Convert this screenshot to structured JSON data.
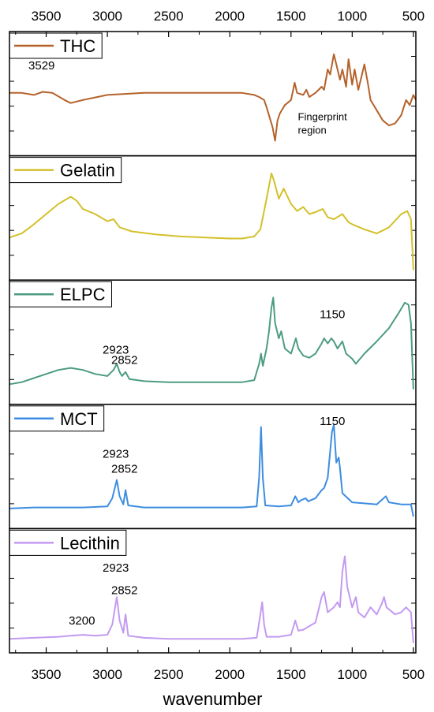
{
  "chart_data": {
    "type": "line",
    "xlabel": "wavenumber",
    "ylabel": "",
    "xlim": [
      3800,
      480
    ],
    "x_ticks": [
      "3500",
      "3000",
      "2500",
      "2000",
      "1500",
      "1000",
      "500"
    ],
    "x_tick_values": [
      3500,
      3000,
      2500,
      2000,
      1500,
      1000,
      500
    ],
    "panels": [
      {
        "name": "THC",
        "color": "#b5622a",
        "annotations": [
          {
            "text": "3529",
            "x": 3529,
            "y": 0.75
          },
          {
            "text": "Fingerprint region",
            "x": 1250,
            "y": 0.25
          }
        ],
        "points": [
          [
            3800,
            0.52
          ],
          [
            3700,
            0.52
          ],
          [
            3600,
            0.5
          ],
          [
            3529,
            0.53
          ],
          [
            3450,
            0.52
          ],
          [
            3350,
            0.45
          ],
          [
            3300,
            0.42
          ],
          [
            3200,
            0.45
          ],
          [
            3000,
            0.5
          ],
          [
            2700,
            0.52
          ],
          [
            2400,
            0.52
          ],
          [
            2000,
            0.52
          ],
          [
            1900,
            0.52
          ],
          [
            1800,
            0.5
          ],
          [
            1760,
            0.48
          ],
          [
            1720,
            0.45
          ],
          [
            1700,
            0.38
          ],
          [
            1680,
            0.3
          ],
          [
            1650,
            0.18
          ],
          [
            1630,
            0.05
          ],
          [
            1610,
            0.25
          ],
          [
            1590,
            0.32
          ],
          [
            1550,
            0.4
          ],
          [
            1500,
            0.45
          ],
          [
            1470,
            0.62
          ],
          [
            1450,
            0.52
          ],
          [
            1400,
            0.5
          ],
          [
            1375,
            0.55
          ],
          [
            1350,
            0.48
          ],
          [
            1300,
            0.52
          ],
          [
            1250,
            0.58
          ],
          [
            1230,
            0.55
          ],
          [
            1200,
            0.75
          ],
          [
            1180,
            0.7
          ],
          [
            1150,
            0.9
          ],
          [
            1130,
            0.8
          ],
          [
            1100,
            0.65
          ],
          [
            1080,
            0.75
          ],
          [
            1050,
            0.58
          ],
          [
            1030,
            0.85
          ],
          [
            1000,
            0.6
          ],
          [
            980,
            0.75
          ],
          [
            950,
            0.55
          ],
          [
            900,
            0.8
          ],
          [
            870,
            0.6
          ],
          [
            850,
            0.45
          ],
          [
            800,
            0.35
          ],
          [
            750,
            0.25
          ],
          [
            700,
            0.2
          ],
          [
            650,
            0.22
          ],
          [
            600,
            0.3
          ],
          [
            560,
            0.45
          ],
          [
            530,
            0.4
          ],
          [
            500,
            0.5
          ],
          [
            480,
            0.45
          ]
        ]
      },
      {
        "name": "Gelatin",
        "color": "#d3c02a",
        "annotations": [],
        "points": [
          [
            3800,
            0.32
          ],
          [
            3700,
            0.36
          ],
          [
            3600,
            0.45
          ],
          [
            3500,
            0.55
          ],
          [
            3400,
            0.65
          ],
          [
            3300,
            0.72
          ],
          [
            3250,
            0.68
          ],
          [
            3200,
            0.6
          ],
          [
            3100,
            0.55
          ],
          [
            3000,
            0.48
          ],
          [
            2950,
            0.5
          ],
          [
            2900,
            0.42
          ],
          [
            2800,
            0.38
          ],
          [
            2600,
            0.35
          ],
          [
            2400,
            0.33
          ],
          [
            2200,
            0.32
          ],
          [
            2000,
            0.31
          ],
          [
            1900,
            0.31
          ],
          [
            1800,
            0.33
          ],
          [
            1750,
            0.4
          ],
          [
            1700,
            0.7
          ],
          [
            1660,
            0.95
          ],
          [
            1640,
            0.88
          ],
          [
            1600,
            0.7
          ],
          [
            1560,
            0.8
          ],
          [
            1540,
            0.75
          ],
          [
            1500,
            0.65
          ],
          [
            1450,
            0.58
          ],
          [
            1400,
            0.62
          ],
          [
            1350,
            0.55
          ],
          [
            1300,
            0.57
          ],
          [
            1240,
            0.6
          ],
          [
            1200,
            0.52
          ],
          [
            1150,
            0.5
          ],
          [
            1080,
            0.55
          ],
          [
            1030,
            0.47
          ],
          [
            1000,
            0.45
          ],
          [
            900,
            0.4
          ],
          [
            800,
            0.36
          ],
          [
            700,
            0.42
          ],
          [
            600,
            0.55
          ],
          [
            550,
            0.58
          ],
          [
            520,
            0.5
          ],
          [
            500,
            0.0
          ]
        ]
      },
      {
        "name": "ELPC",
        "color": "#4c9c80",
        "annotations": [
          {
            "text": "2923",
            "x": 2923,
            "y": 0.4
          },
          {
            "text": "2852",
            "x": 2852,
            "y": 0.3
          },
          {
            "text": "1150",
            "x": 1150,
            "y": 0.75
          }
        ],
        "points": [
          [
            3800,
            0.1
          ],
          [
            3700,
            0.12
          ],
          [
            3600,
            0.16
          ],
          [
            3500,
            0.2
          ],
          [
            3400,
            0.24
          ],
          [
            3300,
            0.26
          ],
          [
            3200,
            0.24
          ],
          [
            3100,
            0.2
          ],
          [
            3000,
            0.18
          ],
          [
            2950,
            0.24
          ],
          [
            2923,
            0.3
          ],
          [
            2900,
            0.22
          ],
          [
            2880,
            0.18
          ],
          [
            2852,
            0.22
          ],
          [
            2820,
            0.15
          ],
          [
            2700,
            0.13
          ],
          [
            2500,
            0.12
          ],
          [
            2200,
            0.12
          ],
          [
            2000,
            0.12
          ],
          [
            1900,
            0.12
          ],
          [
            1800,
            0.14
          ],
          [
            1760,
            0.3
          ],
          [
            1745,
            0.4
          ],
          [
            1730,
            0.28
          ],
          [
            1700,
            0.45
          ],
          [
            1680,
            0.62
          ],
          [
            1660,
            0.85
          ],
          [
            1645,
            0.95
          ],
          [
            1630,
            0.7
          ],
          [
            1600,
            0.55
          ],
          [
            1580,
            0.62
          ],
          [
            1550,
            0.45
          ],
          [
            1500,
            0.4
          ],
          [
            1460,
            0.55
          ],
          [
            1440,
            0.45
          ],
          [
            1400,
            0.38
          ],
          [
            1350,
            0.36
          ],
          [
            1300,
            0.4
          ],
          [
            1250,
            0.5
          ],
          [
            1230,
            0.55
          ],
          [
            1200,
            0.5
          ],
          [
            1170,
            0.55
          ],
          [
            1150,
            0.52
          ],
          [
            1120,
            0.45
          ],
          [
            1080,
            0.52
          ],
          [
            1050,
            0.4
          ],
          [
            1000,
            0.35
          ],
          [
            970,
            0.3
          ],
          [
            900,
            0.4
          ],
          [
            800,
            0.52
          ],
          [
            700,
            0.65
          ],
          [
            620,
            0.8
          ],
          [
            570,
            0.9
          ],
          [
            540,
            0.88
          ],
          [
            520,
            0.7
          ],
          [
            500,
            0.05
          ]
        ]
      },
      {
        "name": "MCT",
        "color": "#3d8de0",
        "annotations": [
          {
            "text": "2923",
            "x": 2923,
            "y": 0.6
          },
          {
            "text": "2852",
            "x": 2852,
            "y": 0.45
          },
          {
            "text": "1150",
            "x": 1150,
            "y": 0.92
          }
        ],
        "points": [
          [
            3800,
            0.1
          ],
          [
            3600,
            0.11
          ],
          [
            3400,
            0.11
          ],
          [
            3200,
            0.11
          ],
          [
            3000,
            0.12
          ],
          [
            2960,
            0.2
          ],
          [
            2923,
            0.38
          ],
          [
            2900,
            0.22
          ],
          [
            2870,
            0.14
          ],
          [
            2852,
            0.28
          ],
          [
            2830,
            0.13
          ],
          [
            2700,
            0.11
          ],
          [
            2500,
            0.11
          ],
          [
            2200,
            0.11
          ],
          [
            2000,
            0.11
          ],
          [
            1900,
            0.11
          ],
          [
            1780,
            0.12
          ],
          [
            1760,
            0.4
          ],
          [
            1745,
            0.9
          ],
          [
            1730,
            0.4
          ],
          [
            1710,
            0.13
          ],
          [
            1600,
            0.12
          ],
          [
            1500,
            0.13
          ],
          [
            1465,
            0.22
          ],
          [
            1440,
            0.16
          ],
          [
            1420,
            0.18
          ],
          [
            1380,
            0.2
          ],
          [
            1360,
            0.17
          ],
          [
            1300,
            0.2
          ],
          [
            1250,
            0.28
          ],
          [
            1230,
            0.3
          ],
          [
            1200,
            0.4
          ],
          [
            1165,
            0.85
          ],
          [
            1150,
            0.92
          ],
          [
            1130,
            0.55
          ],
          [
            1110,
            0.6
          ],
          [
            1100,
            0.5
          ],
          [
            1080,
            0.25
          ],
          [
            1000,
            0.16
          ],
          [
            900,
            0.15
          ],
          [
            800,
            0.14
          ],
          [
            725,
            0.22
          ],
          [
            700,
            0.16
          ],
          [
            600,
            0.14
          ],
          [
            520,
            0.14
          ],
          [
            500,
            0.02
          ]
        ]
      },
      {
        "name": "Lecithin",
        "color": "#c39af1",
        "annotations": [
          {
            "text": "2923",
            "x": 2923,
            "y": 0.7
          },
          {
            "text": "2852",
            "x": 2852,
            "y": 0.48
          },
          {
            "text": "3200",
            "x": 3200,
            "y": 0.18
          }
        ],
        "points": [
          [
            3800,
            0.04
          ],
          [
            3600,
            0.05
          ],
          [
            3400,
            0.06
          ],
          [
            3300,
            0.07
          ],
          [
            3200,
            0.08
          ],
          [
            3100,
            0.07
          ],
          [
            3000,
            0.08
          ],
          [
            2960,
            0.18
          ],
          [
            2923,
            0.45
          ],
          [
            2900,
            0.22
          ],
          [
            2870,
            0.1
          ],
          [
            2852,
            0.28
          ],
          [
            2830,
            0.07
          ],
          [
            2700,
            0.05
          ],
          [
            2500,
            0.04
          ],
          [
            2200,
            0.04
          ],
          [
            2000,
            0.04
          ],
          [
            1900,
            0.04
          ],
          [
            1780,
            0.05
          ],
          [
            1760,
            0.2
          ],
          [
            1735,
            0.4
          ],
          [
            1720,
            0.18
          ],
          [
            1700,
            0.06
          ],
          [
            1600,
            0.06
          ],
          [
            1500,
            0.08
          ],
          [
            1465,
            0.22
          ],
          [
            1440,
            0.12
          ],
          [
            1400,
            0.13
          ],
          [
            1300,
            0.2
          ],
          [
            1250,
            0.45
          ],
          [
            1230,
            0.5
          ],
          [
            1200,
            0.3
          ],
          [
            1150,
            0.35
          ],
          [
            1120,
            0.4
          ],
          [
            1100,
            0.35
          ],
          [
            1080,
            0.7
          ],
          [
            1060,
            0.85
          ],
          [
            1040,
            0.55
          ],
          [
            1000,
            0.35
          ],
          [
            970,
            0.45
          ],
          [
            950,
            0.3
          ],
          [
            900,
            0.25
          ],
          [
            850,
            0.35
          ],
          [
            800,
            0.28
          ],
          [
            760,
            0.38
          ],
          [
            740,
            0.45
          ],
          [
            720,
            0.35
          ],
          [
            650,
            0.28
          ],
          [
            600,
            0.3
          ],
          [
            560,
            0.35
          ],
          [
            520,
            0.3
          ],
          [
            500,
            0.0
          ]
        ]
      }
    ]
  }
}
